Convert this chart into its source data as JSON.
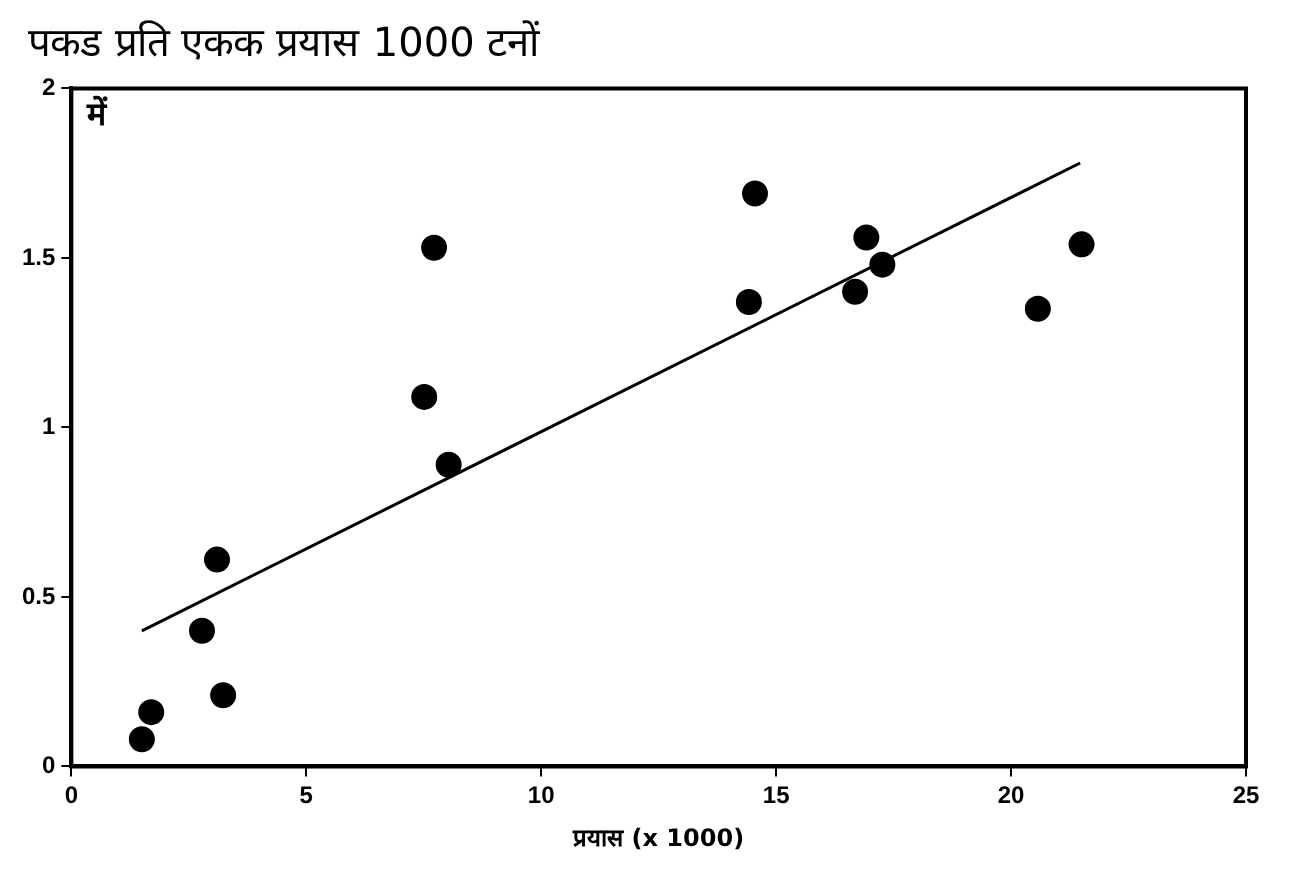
{
  "chart_data": {
    "type": "scatter",
    "title": "पकड प्रति एकक प्रयास 1000 टनों",
    "xlabel": "प्रयास (x 1000)",
    "annotations": [
      "में"
    ],
    "series": [
      {
        "color": "#000000",
        "x": [
          1.5,
          1.7,
          2.78,
          3.1,
          3.23,
          7.51,
          7.72,
          8.03,
          14.42,
          14.55,
          16.68,
          16.92,
          17.26,
          20.57,
          21.5
        ],
        "values": [
          0.08,
          0.16,
          0.4,
          0.61,
          0.21,
          1.09,
          1.53,
          0.89,
          1.37,
          1.69,
          1.4,
          1.56,
          1.48,
          1.35,
          1.54
        ]
      },
      {
        "type": "line",
        "marker": "none",
        "color": "#000000",
        "x": [
          1.5,
          21.47
        ],
        "values": [
          0.4,
          1.78
        ]
      }
    ],
    "xlim": [
      0,
      25
    ],
    "xticks": [
      0,
      5,
      10,
      15,
      20,
      25
    ],
    "ylim": [
      0,
      2
    ],
    "yticks": [
      0,
      0.5,
      1,
      1.5,
      2
    ],
    "grid": false,
    "legend": false,
    "marker": "circle"
  }
}
